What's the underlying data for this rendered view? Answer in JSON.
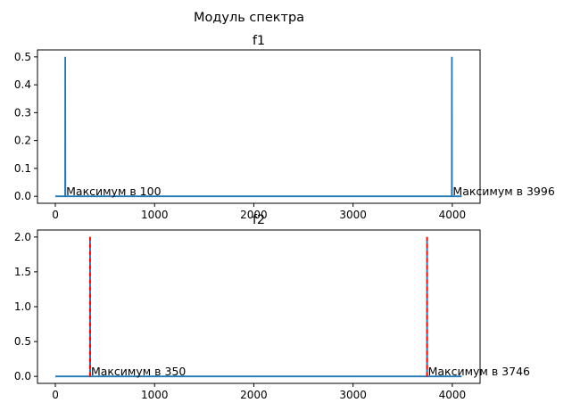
{
  "suptitle": "Модуль спектра",
  "chart_data": [
    {
      "type": "line",
      "title": "f1",
      "xlabel": "",
      "ylabel": "",
      "xlim": [
        -180,
        4280
      ],
      "ylim": [
        -0.025,
        0.525
      ],
      "xticks": [
        0,
        1000,
        2000,
        3000,
        4000
      ],
      "xtick_labels": [
        "0",
        "1000",
        "2000",
        "3000",
        "4000"
      ],
      "yticks": [
        0.0,
        0.1,
        0.2,
        0.3,
        0.4,
        0.5
      ],
      "ytick_labels": [
        "0.0",
        "0.1",
        "0.2",
        "0.3",
        "0.4",
        "0.5"
      ],
      "grid": false,
      "series": [
        {
          "color": "#1f77b4",
          "style": "solid",
          "points": [
            [
              0,
              0
            ],
            [
              99,
              0
            ],
            [
              100,
              0.5
            ],
            [
              101,
              0
            ],
            [
              3995,
              0
            ],
            [
              3996,
              0.5
            ],
            [
              3997,
              0
            ],
            [
              4095,
              0
            ]
          ]
        }
      ],
      "annotations": [
        {
          "text": "Максимум в 100",
          "x": 100,
          "y": 0
        },
        {
          "text": "Максимум в 3996",
          "x": 3996,
          "y": 0
        }
      ]
    },
    {
      "type": "line",
      "title": "f2",
      "xlabel": "",
      "ylabel": "",
      "xlim": [
        -180,
        4280
      ],
      "ylim": [
        -0.1,
        2.1
      ],
      "xticks": [
        0,
        1000,
        2000,
        3000,
        4000
      ],
      "xtick_labels": [
        "0",
        "1000",
        "2000",
        "3000",
        "4000"
      ],
      "yticks": [
        0.0,
        0.5,
        1.0,
        1.5,
        2.0
      ],
      "ytick_labels": [
        "0.0",
        "0.5",
        "1.0",
        "1.5",
        "2.0"
      ],
      "grid": false,
      "series": [
        {
          "color": "#1f77b4",
          "style": "solid",
          "points": [
            [
              0,
              0
            ],
            [
              349,
              0
            ],
            [
              350,
              2
            ],
            [
              351,
              0
            ],
            [
              3745,
              0
            ],
            [
              3746,
              2
            ],
            [
              3747,
              0
            ],
            [
              4095,
              0
            ]
          ]
        },
        {
          "color": "#ff0000",
          "style": "dashed",
          "points": [
            [
              350,
              0
            ],
            [
              350,
              2
            ]
          ]
        },
        {
          "color": "#ff0000",
          "style": "dashed",
          "points": [
            [
              3746,
              0
            ],
            [
              3746,
              2
            ]
          ]
        }
      ],
      "annotations": [
        {
          "text": "Максимум в 350",
          "x": 350,
          "y": 0
        },
        {
          "text": "Максимум в 3746",
          "x": 3746,
          "y": 0
        }
      ]
    }
  ]
}
